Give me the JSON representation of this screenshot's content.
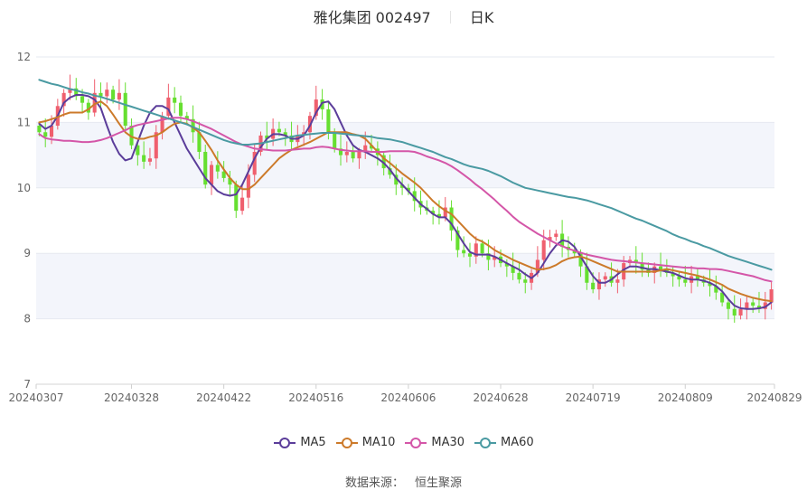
{
  "chart_data": {
    "type": "candlestick",
    "title": "雅化集团 002497",
    "period": "日K",
    "source_label": "数据来源：",
    "source_name": "恒生聚源",
    "ylim": [
      7,
      12
    ],
    "y_ticks": [
      7,
      8,
      9,
      10,
      11,
      12
    ],
    "x_tick_labels": [
      "20240307",
      "20240328",
      "20240422",
      "20240516",
      "20240606",
      "20240628",
      "20240719",
      "20240809",
      "20240829"
    ],
    "dates": [
      "20240307",
      "20240308",
      "20240311",
      "20240312",
      "20240313",
      "20240314",
      "20240315",
      "20240318",
      "20240319",
      "20240320",
      "20240321",
      "20240322",
      "20240325",
      "20240326",
      "20240327",
      "20240328",
      "20240329",
      "20240401",
      "20240402",
      "20240403",
      "20240408",
      "20240409",
      "20240410",
      "20240411",
      "20240412",
      "20240415",
      "20240416",
      "20240417",
      "20240418",
      "20240419",
      "20240422",
      "20240423",
      "20240424",
      "20240425",
      "20240426",
      "20240429",
      "20240430",
      "20240506",
      "20240507",
      "20240508",
      "20240509",
      "20240510",
      "20240513",
      "20240514",
      "20240515",
      "20240516",
      "20240517",
      "20240520",
      "20240521",
      "20240522",
      "20240523",
      "20240524",
      "20240527",
      "20240528",
      "20240529",
      "20240530",
      "20240531",
      "20240603",
      "20240604",
      "20240605",
      "20240606",
      "20240607",
      "20240611",
      "20240612",
      "20240613",
      "20240614",
      "20240617",
      "20240618",
      "20240619",
      "20240620",
      "20240621",
      "20240624",
      "20240625",
      "20240626",
      "20240627",
      "20240628",
      "20240701",
      "20240702",
      "20240703",
      "20240704",
      "20240705",
      "20240708",
      "20240709",
      "20240710",
      "20240711",
      "20240712",
      "20240715",
      "20240716",
      "20240717",
      "20240718",
      "20240719",
      "20240722",
      "20240723",
      "20240724",
      "20240725",
      "20240726",
      "20240729",
      "20240730",
      "20240731",
      "20240801",
      "20240802",
      "20240805",
      "20240806",
      "20240807",
      "20240808",
      "20240809",
      "20240812",
      "20240813",
      "20240814",
      "20240815",
      "20240816",
      "20240819",
      "20240820",
      "20240821",
      "20240822",
      "20240823",
      "20240826",
      "20240827",
      "20240828",
      "20240829"
    ],
    "closes": [
      10.85,
      10.78,
      10.95,
      11.25,
      11.45,
      11.52,
      11.4,
      11.3,
      11.15,
      11.45,
      11.4,
      11.5,
      11.35,
      11.45,
      10.95,
      10.65,
      10.5,
      10.4,
      10.45,
      10.85,
      11.1,
      11.38,
      11.3,
      11.1,
      11.05,
      10.85,
      10.55,
      10.05,
      10.35,
      10.25,
      10.15,
      10.05,
      9.65,
      9.85,
      10.2,
      10.55,
      10.8,
      10.75,
      10.9,
      10.85,
      10.8,
      10.7,
      10.8,
      10.85,
      11.1,
      11.35,
      11.2,
      10.85,
      10.6,
      10.5,
      10.55,
      10.45,
      10.55,
      10.65,
      10.6,
      10.5,
      10.3,
      10.2,
      10.05,
      10.0,
      9.95,
      9.8,
      9.7,
      9.65,
      9.6,
      9.55,
      9.7,
      9.35,
      9.05,
      9.0,
      8.95,
      9.15,
      9.0,
      8.9,
      8.95,
      8.85,
      8.8,
      8.7,
      8.6,
      8.55,
      8.7,
      8.9,
      9.2,
      9.25,
      9.3,
      9.1,
      9.05,
      9.0,
      8.8,
      8.55,
      8.45,
      8.6,
      8.65,
      8.55,
      8.6,
      8.85,
      8.9,
      8.85,
      8.75,
      8.7,
      8.8,
      8.75,
      8.7,
      8.65,
      8.6,
      8.55,
      8.65,
      8.6,
      8.55,
      8.5,
      8.4,
      8.25,
      8.15,
      8.05,
      8.15,
      8.25,
      8.2,
      8.15,
      8.25,
      8.45
    ],
    "series": [
      {
        "name": "MA5",
        "color": "#5b3d9a",
        "values": [
          10.98,
          10.9,
          10.95,
          11.1,
          11.3,
          11.38,
          11.42,
          11.42,
          11.4,
          11.35,
          11.22,
          10.95,
          10.7,
          10.52,
          10.42,
          10.45,
          10.7,
          10.95,
          11.15,
          11.25,
          11.25,
          11.2,
          11.0,
          10.8,
          10.6,
          10.45,
          10.3,
          10.15,
          10.05,
          9.95,
          9.9,
          9.88,
          9.9,
          10.05,
          10.25,
          10.45,
          10.62,
          10.75,
          10.82,
          10.82,
          10.8,
          10.75,
          10.75,
          10.8,
          10.95,
          11.15,
          11.3,
          11.32,
          11.2,
          11.0,
          10.8,
          10.65,
          10.58,
          10.55,
          10.5,
          10.45,
          10.38,
          10.28,
          10.15,
          10.05,
          9.95,
          9.85,
          9.75,
          9.68,
          9.6,
          9.55,
          9.55,
          9.45,
          9.3,
          9.15,
          9.02,
          8.98,
          8.98,
          8.98,
          8.95,
          8.9,
          8.85,
          8.8,
          8.75,
          8.68,
          8.62,
          8.7,
          8.85,
          9.0,
          9.12,
          9.2,
          9.18,
          9.1,
          8.95,
          8.8,
          8.65,
          8.55,
          8.55,
          8.6,
          8.68,
          8.75,
          8.8,
          8.8,
          8.78,
          8.76,
          8.76,
          8.74,
          8.72,
          8.7,
          8.66,
          8.62,
          8.6,
          8.6,
          8.58,
          8.55,
          8.5,
          8.42,
          8.3,
          8.2,
          8.16,
          8.15,
          8.15,
          8.16,
          8.18,
          8.25
        ]
      },
      {
        "name": "MA10",
        "color": "#cc7a2a",
        "values": [
          11.0,
          11.02,
          11.05,
          11.08,
          11.12,
          11.15,
          11.15,
          11.15,
          11.2,
          11.28,
          11.32,
          11.25,
          11.12,
          10.98,
          10.85,
          10.78,
          10.75,
          10.75,
          10.78,
          10.8,
          10.85,
          10.92,
          10.98,
          11.0,
          10.98,
          10.92,
          10.85,
          10.72,
          10.58,
          10.42,
          10.28,
          10.15,
          10.05,
          9.98,
          9.98,
          10.05,
          10.15,
          10.25,
          10.35,
          10.45,
          10.52,
          10.58,
          10.62,
          10.66,
          10.7,
          10.75,
          10.8,
          10.85,
          10.85,
          10.85,
          10.85,
          10.82,
          10.8,
          10.75,
          10.65,
          10.55,
          10.45,
          10.38,
          10.3,
          10.22,
          10.15,
          10.08,
          10.0,
          9.9,
          9.8,
          9.72,
          9.65,
          9.6,
          9.5,
          9.4,
          9.3,
          9.22,
          9.18,
          9.12,
          9.05,
          9.0,
          8.95,
          8.9,
          8.86,
          8.82,
          8.78,
          8.75,
          8.76,
          8.78,
          8.82,
          8.88,
          8.92,
          8.94,
          8.95,
          8.92,
          8.88,
          8.84,
          8.8,
          8.76,
          8.72,
          8.72,
          8.72,
          8.72,
          8.72,
          8.72,
          8.72,
          8.74,
          8.76,
          8.74,
          8.72,
          8.7,
          8.68,
          8.66,
          8.63,
          8.6,
          8.56,
          8.52,
          8.46,
          8.42,
          8.38,
          8.35,
          8.32,
          8.3,
          8.28,
          8.27
        ]
      },
      {
        "name": "MA30",
        "color": "#d456a8",
        "values": [
          10.82,
          10.76,
          10.74,
          10.73,
          10.72,
          10.72,
          10.71,
          10.7,
          10.7,
          10.71,
          10.73,
          10.76,
          10.8,
          10.84,
          10.88,
          10.93,
          10.96,
          10.98,
          11.0,
          11.02,
          11.04,
          11.06,
          11.07,
          11.07,
          11.05,
          11.02,
          10.98,
          10.94,
          10.9,
          10.85,
          10.8,
          10.75,
          10.7,
          10.66,
          10.63,
          10.6,
          10.59,
          10.58,
          10.57,
          10.57,
          10.57,
          10.58,
          10.59,
          10.6,
          10.6,
          10.62,
          10.63,
          10.62,
          10.6,
          10.58,
          10.57,
          10.56,
          10.56,
          10.56,
          10.55,
          10.55,
          10.55,
          10.56,
          10.56,
          10.56,
          10.56,
          10.55,
          10.52,
          10.48,
          10.45,
          10.42,
          10.38,
          10.33,
          10.27,
          10.2,
          10.13,
          10.05,
          9.98,
          9.9,
          9.82,
          9.73,
          9.65,
          9.56,
          9.48,
          9.42,
          9.36,
          9.3,
          9.25,
          9.2,
          9.15,
          9.11,
          9.07,
          9.04,
          9.01,
          8.98,
          8.96,
          8.94,
          8.92,
          8.9,
          8.89,
          8.88,
          8.87,
          8.86,
          8.85,
          8.84,
          8.83,
          8.82,
          8.81,
          8.8,
          8.79,
          8.78,
          8.78,
          8.77,
          8.77,
          8.76,
          8.76,
          8.75,
          8.73,
          8.71,
          8.69,
          8.67,
          8.65,
          8.62,
          8.59,
          8.57
        ]
      },
      {
        "name": "MA60",
        "color": "#4a9aa2",
        "values": [
          11.65,
          11.62,
          11.59,
          11.57,
          11.54,
          11.51,
          11.49,
          11.46,
          11.44,
          11.41,
          11.39,
          11.36,
          11.33,
          11.3,
          11.27,
          11.24,
          11.21,
          11.18,
          11.15,
          11.12,
          11.09,
          11.06,
          11.03,
          11.0,
          10.97,
          10.93,
          10.89,
          10.85,
          10.81,
          10.77,
          10.73,
          10.7,
          10.68,
          10.66,
          10.66,
          10.67,
          10.68,
          10.7,
          10.72,
          10.74,
          10.76,
          10.78,
          10.8,
          10.81,
          10.82,
          10.83,
          10.84,
          10.84,
          10.84,
          10.83,
          10.82,
          10.81,
          10.8,
          10.79,
          10.78,
          10.76,
          10.75,
          10.74,
          10.72,
          10.7,
          10.67,
          10.64,
          10.61,
          10.58,
          10.55,
          10.51,
          10.47,
          10.44,
          10.4,
          10.36,
          10.33,
          10.31,
          10.29,
          10.26,
          10.22,
          10.18,
          10.13,
          10.08,
          10.04,
          10.0,
          9.98,
          9.96,
          9.94,
          9.92,
          9.9,
          9.88,
          9.86,
          9.85,
          9.83,
          9.81,
          9.78,
          9.75,
          9.72,
          9.69,
          9.65,
          9.61,
          9.57,
          9.53,
          9.5,
          9.46,
          9.42,
          9.38,
          9.34,
          9.29,
          9.25,
          9.22,
          9.18,
          9.15,
          9.11,
          9.08,
          9.04,
          9.0,
          8.96,
          8.93,
          8.9,
          8.87,
          8.84,
          8.81,
          8.78,
          8.75
        ]
      }
    ],
    "up_color": "#ef5f6e",
    "down_color": "#66df30",
    "grid": true,
    "legend_position": "bottom"
  }
}
